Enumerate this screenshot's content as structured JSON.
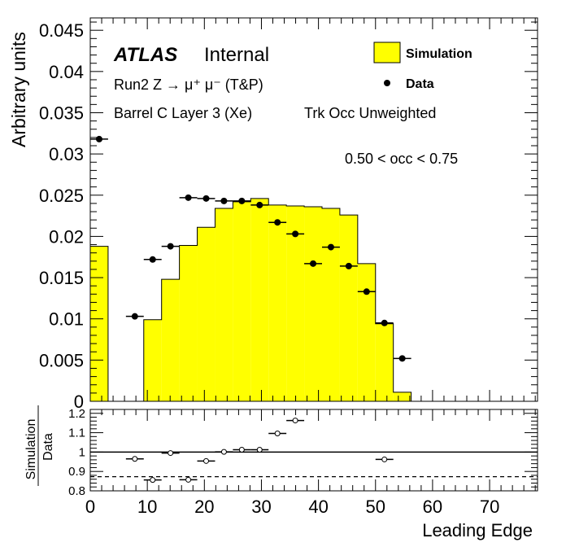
{
  "chart_data": [
    {
      "type": "bar",
      "panel": "main",
      "ylabel": "Arbitrary units",
      "xlim": [
        0,
        78.4
      ],
      "ylim": [
        0,
        0.0465
      ],
      "yticks": [
        "0",
        "0.005",
        "0.01",
        "0.015",
        "0.02",
        "0.025",
        "0.03",
        "0.035",
        "0.04",
        "0.045"
      ],
      "annotations": {
        "atlas": "ATLAS",
        "internal": "Internal",
        "process": "Run2 Z → μ⁺ μ⁻ (T&P)",
        "region": "Barrel C Layer 3 (Xe)",
        "weighting": "Trk Occ Unweighted",
        "occ_range": "0.50 < occ < 0.75"
      },
      "legend": {
        "placement": "top-right",
        "simulation": "Simulation",
        "data": "Data"
      },
      "colors": {
        "simulation_fill": "#ffff00",
        "line": "#000000"
      },
      "bin_width": 3.125,
      "series": [
        {
          "name": "Simulation",
          "kind": "histogram",
          "bin_edges": [
            0,
            3.125,
            6.25,
            9.375,
            12.5,
            15.625,
            18.75,
            21.875,
            25,
            28.125,
            31.25,
            34.375,
            37.5,
            40.625,
            43.75,
            46.875,
            50,
            53.125,
            56.25
          ],
          "values": [
            0.0188,
            0,
            0,
            0.0099,
            0.0148,
            0.0189,
            0.0211,
            0.0234,
            0.0242,
            0.0246,
            0.0238,
            0.0237,
            0.0236,
            0.0234,
            0.0226,
            0.0167,
            0.0094,
            0.0011
          ]
        },
        {
          "name": "Data",
          "kind": "points",
          "x": [
            1.5625,
            7.8125,
            10.9375,
            14.0625,
            17.1875,
            20.3125,
            23.4375,
            26.5625,
            29.6875,
            32.8125,
            35.9375,
            39.0625,
            42.1875,
            45.3125,
            48.4375,
            51.5625,
            54.6875
          ],
          "y": [
            0.0318,
            0.0103,
            0.0172,
            0.0188,
            0.0247,
            0.0246,
            0.0243,
            0.0243,
            0.0238,
            0.0217,
            0.0203,
            0.0167,
            0.0187,
            0.0164,
            0.0133,
            0.0095,
            0.0052
          ]
        }
      ]
    },
    {
      "type": "scatter",
      "panel": "ratio",
      "ylabel_num": "Simulation",
      "ylabel_den": "Data",
      "xlabel": "Leading Edge",
      "xlim": [
        0,
        78.4
      ],
      "ylim": [
        0.8,
        1.22
      ],
      "yticks": [
        "0.8",
        "0.9",
        "1",
        "1.1",
        "1.2"
      ],
      "xticks": [
        "0",
        "10",
        "20",
        "30",
        "40",
        "50",
        "60",
        "70"
      ],
      "reference_lines": [
        {
          "y": 1.0,
          "style": "solid"
        },
        {
          "y": 0.873,
          "style": "dashed"
        }
      ],
      "series": [
        {
          "name": "",
          "x": [
            7.8125,
            10.9375,
            14.0625,
            17.1875,
            20.3125,
            23.4375,
            26.5625,
            29.6875,
            32.8125,
            35.9375,
            51.5625
          ],
          "y": [
            0.965,
            0.856,
            0.995,
            0.857,
            0.954,
            1.001,
            1.012,
            1.012,
            1.096,
            1.163,
            0.962
          ]
        }
      ]
    }
  ]
}
